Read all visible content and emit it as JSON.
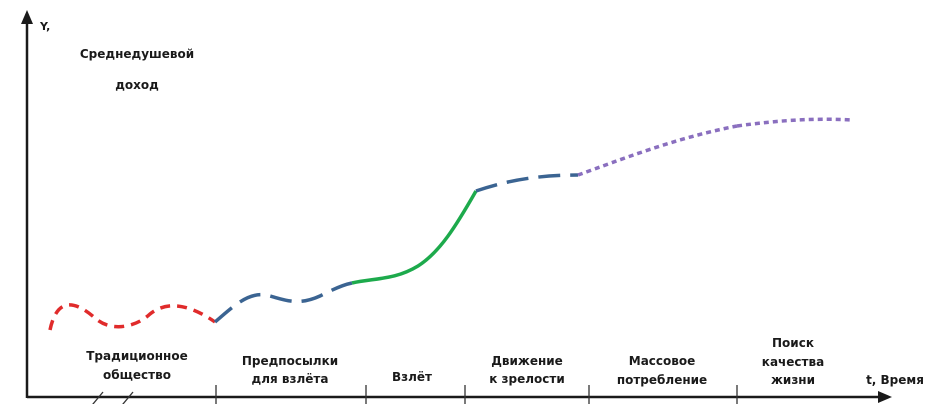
{
  "axes": {
    "y_label_line1": "Y,",
    "y_label_line2": "Среднедушевой",
    "y_label_line3": "доход",
    "x_label": "t, Время"
  },
  "stages": [
    {
      "line1": "Традиционное",
      "line2": "общество",
      "color": "#e02b2b",
      "style": "dashed"
    },
    {
      "line1": "Предпосылки",
      "line2": "для взлёта",
      "color": "#3b6492",
      "style": "dashed"
    },
    {
      "line1": "Взлёт",
      "line2": "",
      "color": "#1daa4c",
      "style": "solid"
    },
    {
      "line1": "Движение",
      "line2": "к зрелости",
      "color": "#3b6492",
      "style": "dashed"
    },
    {
      "line1": "Массовое",
      "line2": "потребление",
      "color": "#8a6fbf",
      "style": "dashed"
    },
    {
      "line1": "Поиск",
      "line2": "качества",
      "line3": "жизни",
      "color": "#8a6fbf",
      "style": "dashed"
    }
  ],
  "colors": {
    "axis": "#1a1a1a"
  }
}
